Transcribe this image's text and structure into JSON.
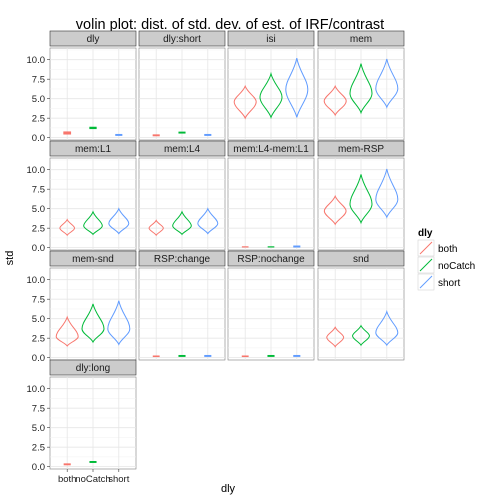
{
  "chart_data": {
    "type": "violin",
    "title": "volin plot: dist. of std. dev. of est. of IRF/contrast",
    "xlabel": "dly",
    "ylabel": "std",
    "ylim": [
      -0.3,
      11.5
    ],
    "yticks": [
      "0.0",
      "2.5",
      "5.0",
      "7.5",
      "10.0"
    ],
    "ytick_values": [
      0,
      2.5,
      5,
      7.5,
      10
    ],
    "categories": [
      "both",
      "noCatch",
      "short"
    ],
    "grid": true,
    "legend": {
      "title": "dly",
      "position": "right",
      "entries": [
        "both",
        "noCatch",
        "short"
      ]
    },
    "colors": {
      "both": "#f8766d",
      "noCatch": "#00ba38",
      "short": "#619cff"
    },
    "panels": [
      {
        "name": "dly",
        "series": [
          {
            "category": "both",
            "min": 0.4,
            "max": 0.8,
            "median": 0.6
          },
          {
            "category": "noCatch",
            "min": 1.1,
            "max": 1.4,
            "median": 1.25
          },
          {
            "category": "short",
            "min": 0.25,
            "max": 0.5,
            "median": 0.35
          }
        ]
      },
      {
        "name": "dly:short",
        "series": [
          {
            "category": "both",
            "min": 0.2,
            "max": 0.45,
            "median": 0.3
          },
          {
            "category": "noCatch",
            "min": 0.55,
            "max": 0.8,
            "median": 0.65
          },
          {
            "category": "short",
            "min": 0.25,
            "max": 0.5,
            "median": 0.35
          }
        ]
      },
      {
        "name": "isi",
        "series": [
          {
            "category": "both",
            "min": 2.5,
            "max": 6.6,
            "median": 4.6
          },
          {
            "category": "noCatch",
            "min": 2.6,
            "max": 8.2,
            "median": 5.2
          },
          {
            "category": "short",
            "min": 2.6,
            "max": 10.2,
            "median": 6.2
          }
        ]
      },
      {
        "name": "mem",
        "series": [
          {
            "category": "both",
            "min": 2.9,
            "max": 6.6,
            "median": 4.7
          },
          {
            "category": "noCatch",
            "min": 3.2,
            "max": 9.5,
            "median": 5.7
          },
          {
            "category": "short",
            "min": 3.9,
            "max": 10.1,
            "median": 6.3
          }
        ]
      },
      {
        "name": "mem:L1",
        "series": [
          {
            "category": "both",
            "min": 1.6,
            "max": 3.6,
            "median": 2.5
          },
          {
            "category": "noCatch",
            "min": 1.7,
            "max": 4.6,
            "median": 2.8
          },
          {
            "category": "short",
            "min": 1.8,
            "max": 5.0,
            "median": 3.1
          }
        ]
      },
      {
        "name": "mem:L4",
        "series": [
          {
            "category": "both",
            "min": 1.6,
            "max": 3.5,
            "median": 2.5
          },
          {
            "category": "noCatch",
            "min": 1.7,
            "max": 4.6,
            "median": 2.8
          },
          {
            "category": "short",
            "min": 1.8,
            "max": 5.0,
            "median": 3.1
          }
        ]
      },
      {
        "name": "mem:L4-mem:L1",
        "series": [
          {
            "category": "both",
            "min": 0.05,
            "max": 0.2,
            "median": 0.1
          },
          {
            "category": "noCatch",
            "min": 0.05,
            "max": 0.2,
            "median": 0.1
          },
          {
            "category": "short",
            "min": 0.05,
            "max": 0.3,
            "median": 0.15
          }
        ]
      },
      {
        "name": "mem-RSP",
        "series": [
          {
            "category": "both",
            "min": 3.0,
            "max": 6.6,
            "median": 4.7
          },
          {
            "category": "noCatch",
            "min": 3.2,
            "max": 9.4,
            "median": 5.6
          },
          {
            "category": "short",
            "min": 3.9,
            "max": 10.1,
            "median": 6.2
          }
        ]
      },
      {
        "name": "mem-snd",
        "series": [
          {
            "category": "both",
            "min": 1.5,
            "max": 5.2,
            "median": 2.7
          },
          {
            "category": "noCatch",
            "min": 2.0,
            "max": 6.9,
            "median": 3.7
          },
          {
            "category": "short",
            "min": 1.7,
            "max": 7.3,
            "median": 3.7
          }
        ]
      },
      {
        "name": "RSP:change",
        "series": [
          {
            "category": "both",
            "min": 0.1,
            "max": 0.3,
            "median": 0.18
          },
          {
            "category": "noCatch",
            "min": 0.1,
            "max": 0.35,
            "median": 0.22
          },
          {
            "category": "short",
            "min": 0.1,
            "max": 0.35,
            "median": 0.22
          }
        ]
      },
      {
        "name": "RSP:nochange",
        "series": [
          {
            "category": "both",
            "min": 0.1,
            "max": 0.3,
            "median": 0.18
          },
          {
            "category": "noCatch",
            "min": 0.1,
            "max": 0.35,
            "median": 0.22
          },
          {
            "category": "short",
            "min": 0.1,
            "max": 0.35,
            "median": 0.22
          }
        ]
      },
      {
        "name": "snd",
        "series": [
          {
            "category": "both",
            "min": 1.4,
            "max": 3.9,
            "median": 2.6
          },
          {
            "category": "noCatch",
            "min": 1.6,
            "max": 4.1,
            "median": 2.8
          },
          {
            "category": "short",
            "min": 1.6,
            "max": 5.9,
            "median": 3.2
          }
        ]
      },
      {
        "name": "dly:long",
        "series": [
          {
            "category": "both",
            "min": 0.2,
            "max": 0.45,
            "median": 0.3
          },
          {
            "category": "noCatch",
            "min": 0.5,
            "max": 0.75,
            "median": 0.6
          },
          {
            "category": "short",
            "min": null,
            "max": null,
            "median": null
          }
        ]
      }
    ]
  }
}
